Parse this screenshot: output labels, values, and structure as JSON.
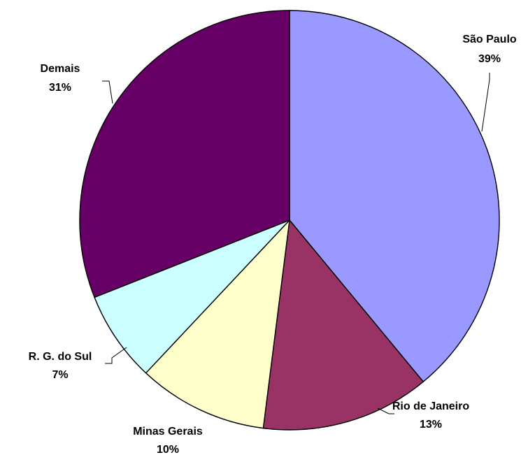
{
  "chart_data": {
    "type": "pie",
    "title": "",
    "start_angle_deg": 0,
    "direction": "clockwise",
    "slices": [
      {
        "label": "São Paulo",
        "percent_label": "39%",
        "value": 39,
        "color": "#9999FF"
      },
      {
        "label": "Rio de Janeiro",
        "percent_label": "13%",
        "value": 13,
        "color": "#993366"
      },
      {
        "label": "Minas Gerais",
        "percent_label": "10%",
        "value": 10,
        "color": "#FFFFCC"
      },
      {
        "label": "R. G. do Sul",
        "percent_label": "7%",
        "value": 7,
        "color": "#CCFFFF"
      },
      {
        "label": "Demais",
        "percent_label": "31%",
        "value": 31,
        "color": "#660066"
      }
    ],
    "legend": "none",
    "data_labels": "outside-with-leader-lines"
  }
}
